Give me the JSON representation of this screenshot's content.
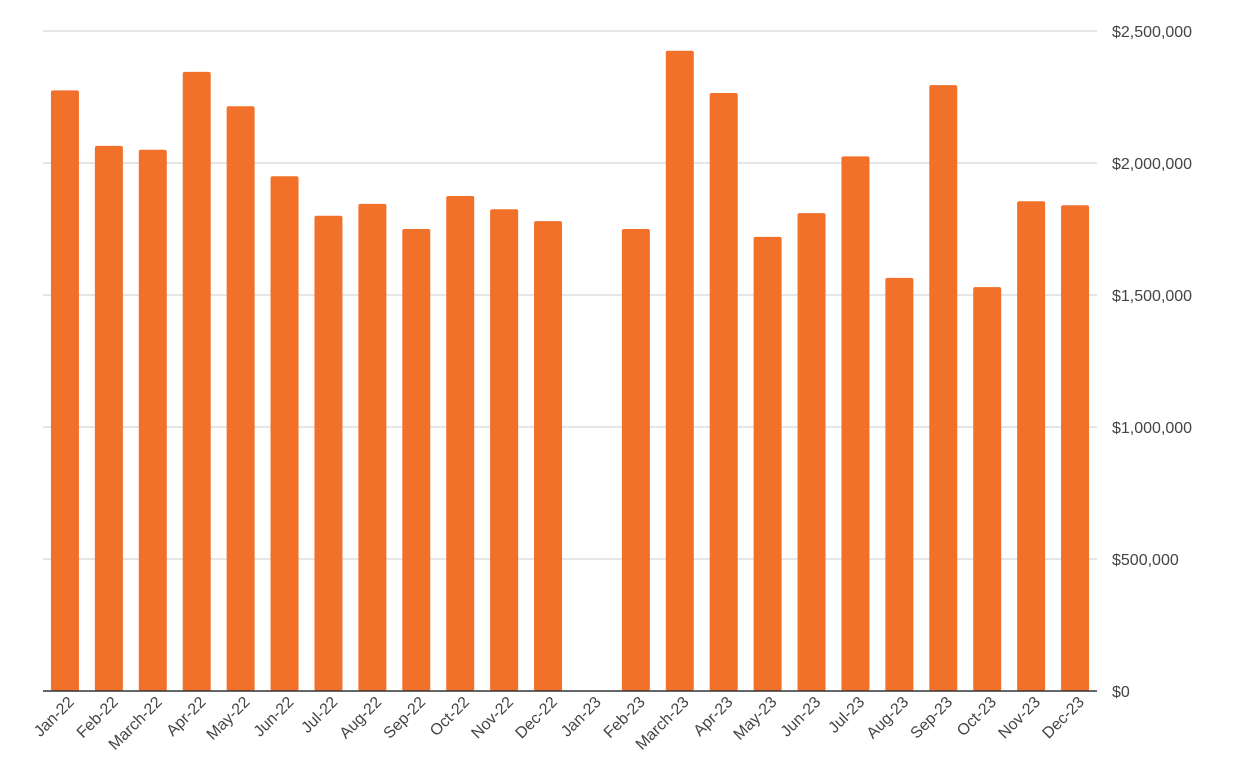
{
  "chart_data": {
    "type": "bar",
    "title": "",
    "xlabel": "",
    "ylabel": "",
    "categories": [
      "Jan-22",
      "Feb-22",
      "March-22",
      "Apr-22",
      "May-22",
      "Jun-22",
      "Jul-22",
      "Aug-22",
      "Sep-22",
      "Oct-22",
      "Nov-22",
      "Dec-22",
      "Jan-23",
      "Feb-23",
      "March-23",
      "Apr-23",
      "May-23",
      "Jun-23",
      "Jul-23",
      "Aug-23",
      "Sep-23",
      "Oct-23",
      "Nov-23",
      "Dec-23"
    ],
    "values": [
      2275000,
      2065000,
      2050000,
      2345000,
      2215000,
      1950000,
      1800000,
      1845000,
      1750000,
      1875000,
      1825000,
      1780000,
      null,
      1750000,
      2425000,
      2265000,
      1720000,
      1810000,
      2025000,
      1565000,
      2295000,
      1530000,
      1855000,
      1840000
    ],
    "ylim": [
      0,
      2500000
    ],
    "yticks": [
      0,
      500000,
      1000000,
      1500000,
      2000000,
      2500000
    ],
    "ytick_labels": [
      "$0",
      "$500,000",
      "$1,000,000",
      "$1,500,000",
      "$2,000,000",
      "$2,500,000"
    ],
    "y_axis_side": "right",
    "grid": true,
    "legend": "none",
    "bar_color": "#f1712a",
    "grid_color": "#cccccc",
    "axis_color": "#333333"
  }
}
